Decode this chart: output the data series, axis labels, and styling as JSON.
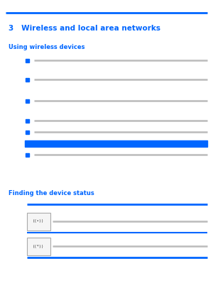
{
  "bg_color": "#ffffff",
  "top_line_color": "#0066ff",
  "chapter_text": "3   Wireless and local area networks",
  "chapter_color": "#0066ff",
  "chapter_fontsize": 7.5,
  "section1_text": "Using wireless devices",
  "section1_color": "#0066ff",
  "section1_fontsize": 6.0,
  "bullet_color": "#0066ff",
  "bullet_size": 3.0,
  "gray_line_color": "#bbbbbb",
  "highlight_bar_color": "#0066ff",
  "section2_text": "Finding the device status",
  "section2_color": "#0066ff",
  "section2_fontsize": 6.0,
  "table_line_color": "#0066ff",
  "icon_edge_color": "#aaaaaa",
  "icon_face_color": "#f5f5f5"
}
